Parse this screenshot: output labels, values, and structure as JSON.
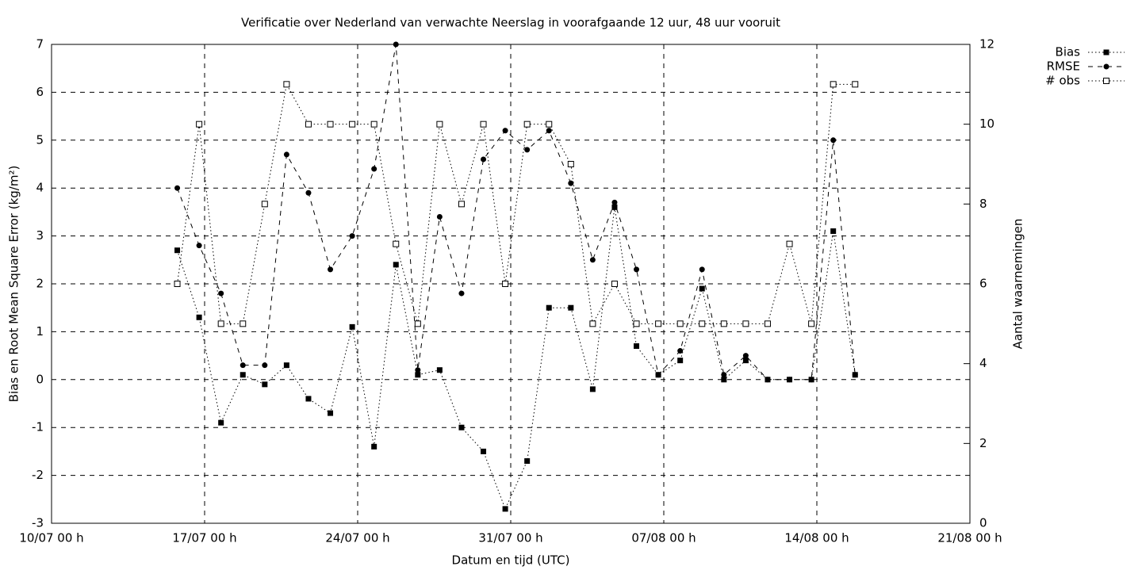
{
  "chart_data": {
    "type": "line",
    "title": "Verificatie over Nederland van verwachte Neerslag in voorafgaande 12 uur, 48 uur vooruit",
    "xlabel": "Datum en tijd (UTC)",
    "ylabel": "Bias en Root Mean Square Error (kg/m²)",
    "y2label": "Aantal waarnemingen",
    "x": [
      5.75,
      6.75,
      7.75,
      8.75,
      9.75,
      10.75,
      11.75,
      12.75,
      13.75,
      14.75,
      15.75,
      16.75,
      17.75,
      18.75,
      19.75,
      20.75,
      21.75,
      22.75,
      23.75,
      24.75,
      25.75,
      26.75,
      27.75,
      28.75,
      29.75,
      30.75,
      31.75,
      32.75,
      33.75,
      34.75,
      35.75,
      36.75
    ],
    "series": [
      {
        "name": "Bias",
        "color": "#000000",
        "linestyle": "dotted",
        "marker": "filled-square",
        "values": [
          2.7,
          1.3,
          -0.9,
          0.1,
          -0.1,
          0.3,
          -0.4,
          -0.7,
          1.1,
          -1.4,
          2.4,
          0.1,
          0.2,
          -1.0,
          -1.5,
          -2.7,
          -1.7,
          1.5,
          1.5,
          -0.2,
          3.6,
          0.7,
          0.1,
          0.4,
          1.9,
          0.0,
          0.4,
          0.0,
          0.0,
          0.0,
          3.1,
          0.1
        ]
      },
      {
        "name": "RMSE",
        "color": "#000000",
        "linestyle": "dashed",
        "marker": "filled-circle",
        "values": [
          4.0,
          2.8,
          1.8,
          0.3,
          0.3,
          4.7,
          3.9,
          2.3,
          3.0,
          4.4,
          7.0,
          0.2,
          3.4,
          1.8,
          4.6,
          5.2,
          4.8,
          5.2,
          4.1,
          2.5,
          3.7,
          2.3,
          0.1,
          0.6,
          2.3,
          0.1,
          0.5,
          0.0,
          0.0,
          0.0,
          5.0,
          0.1
        ]
      },
      {
        "name": "# obs",
        "color": "#000000",
        "linestyle": "dotted",
        "marker": "open-square",
        "axis": "y2",
        "values": [
          6,
          10,
          5,
          5,
          8,
          11,
          10,
          10,
          10,
          10,
          7,
          5,
          10,
          8,
          10,
          6,
          10,
          10,
          9,
          5,
          6,
          5,
          5,
          5,
          5,
          5,
          5,
          5,
          7,
          5,
          11,
          11
        ]
      }
    ],
    "xlim": [
      0,
      42
    ],
    "xticks": [
      {
        "value": 0,
        "label": "10/07 00 h"
      },
      {
        "value": 7,
        "label": "17/07 00 h"
      },
      {
        "value": 14,
        "label": "24/07 00 h"
      },
      {
        "value": 21,
        "label": "31/07 00 h"
      },
      {
        "value": 28,
        "label": "07/08 00 h"
      },
      {
        "value": 35,
        "label": "14/08 00 h"
      },
      {
        "value": 42,
        "label": "21/08 00 h"
      }
    ],
    "ylim": [
      -3,
      7
    ],
    "yticks": [
      -3,
      -2,
      -1,
      0,
      1,
      2,
      3,
      4,
      5,
      6,
      7
    ],
    "y2lim": [
      0,
      12
    ],
    "y2ticks": [
      0,
      2,
      4,
      6,
      8,
      10,
      12
    ],
    "grid": true,
    "legend": "outside-top-right"
  }
}
